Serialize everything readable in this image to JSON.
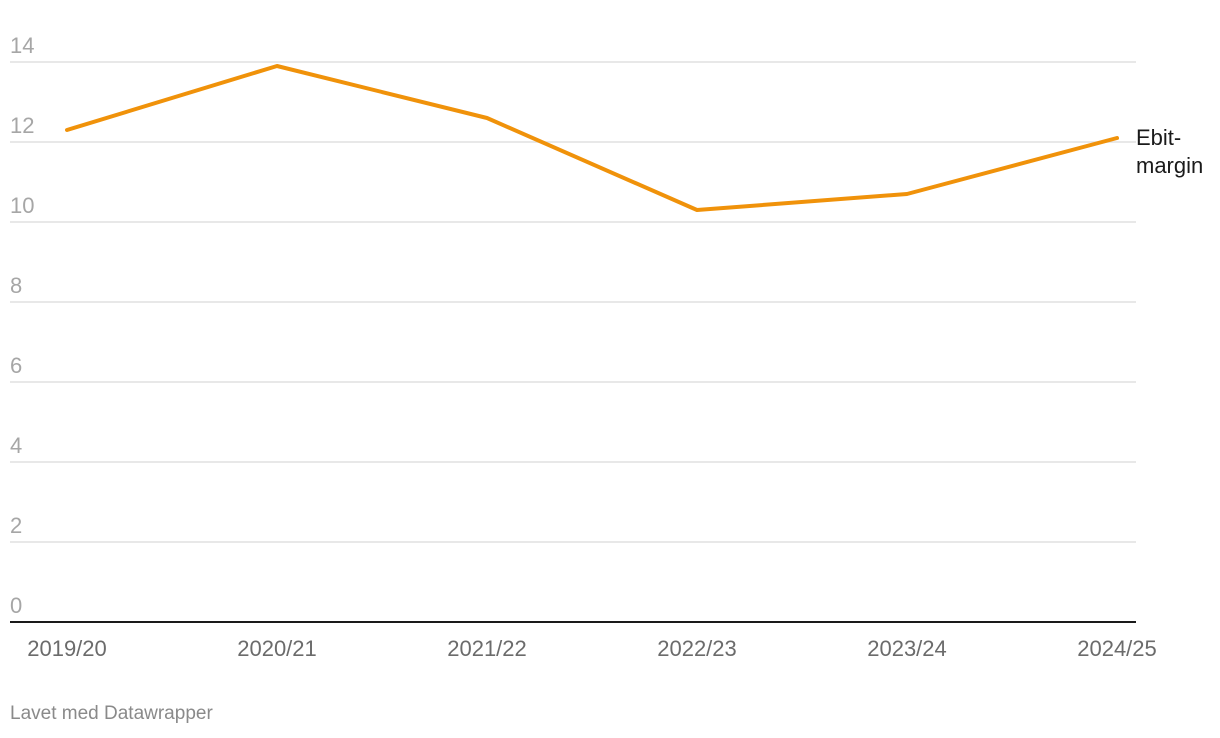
{
  "footer": {
    "credit": "Lavet med Datawrapper"
  },
  "colors": {
    "series": "#f0920a",
    "grid": "#e0e0e0",
    "axis": "#1a1a1a"
  },
  "chart_data": {
    "type": "line",
    "categories": [
      "2019/20",
      "2020/21",
      "2021/22",
      "2022/23",
      "2023/24",
      "2024/25"
    ],
    "series": [
      {
        "name": "Ebit-margin",
        "label_lines": [
          "Ebit-",
          "margin"
        ],
        "values": [
          12.3,
          13.9,
          12.6,
          10.3,
          10.7,
          12.1
        ]
      }
    ],
    "y_ticks": [
      0,
      2,
      4,
      6,
      8,
      10,
      12,
      14
    ],
    "ylim": [
      0,
      14
    ],
    "xlabel": "",
    "ylabel": "",
    "grid": true
  }
}
